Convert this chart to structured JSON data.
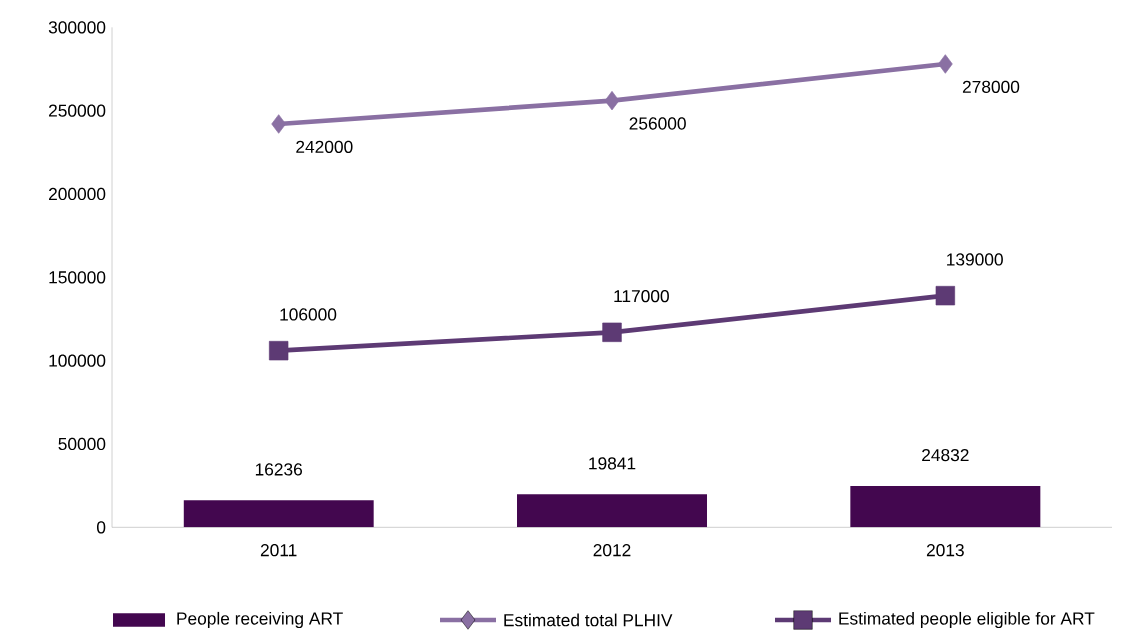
{
  "chart_data": {
    "type": "bar",
    "categories": [
      "2011",
      "2012",
      "2013"
    ],
    "series": [
      {
        "name": "People receiving ART",
        "color": "#43074f",
        "values": [
          16236,
          19841,
          24832
        ]
      },
      {
        "name": "Estimated total PLHIV",
        "type": "line",
        "marker": "diamond",
        "color": "#8a70a3",
        "values": [
          242000,
          256000,
          278000
        ]
      },
      {
        "name": "Estimated people eligible for ART",
        "type": "line",
        "marker": "square",
        "color": "#5d3a74",
        "values": [
          106000,
          117000,
          139000
        ]
      }
    ],
    "ylim": [
      0,
      300000
    ],
    "yticks": [
      0,
      50000,
      100000,
      150000,
      200000,
      250000,
      300000
    ],
    "data_labels": true,
    "legend": "bottom",
    "line_style": "solid"
  }
}
